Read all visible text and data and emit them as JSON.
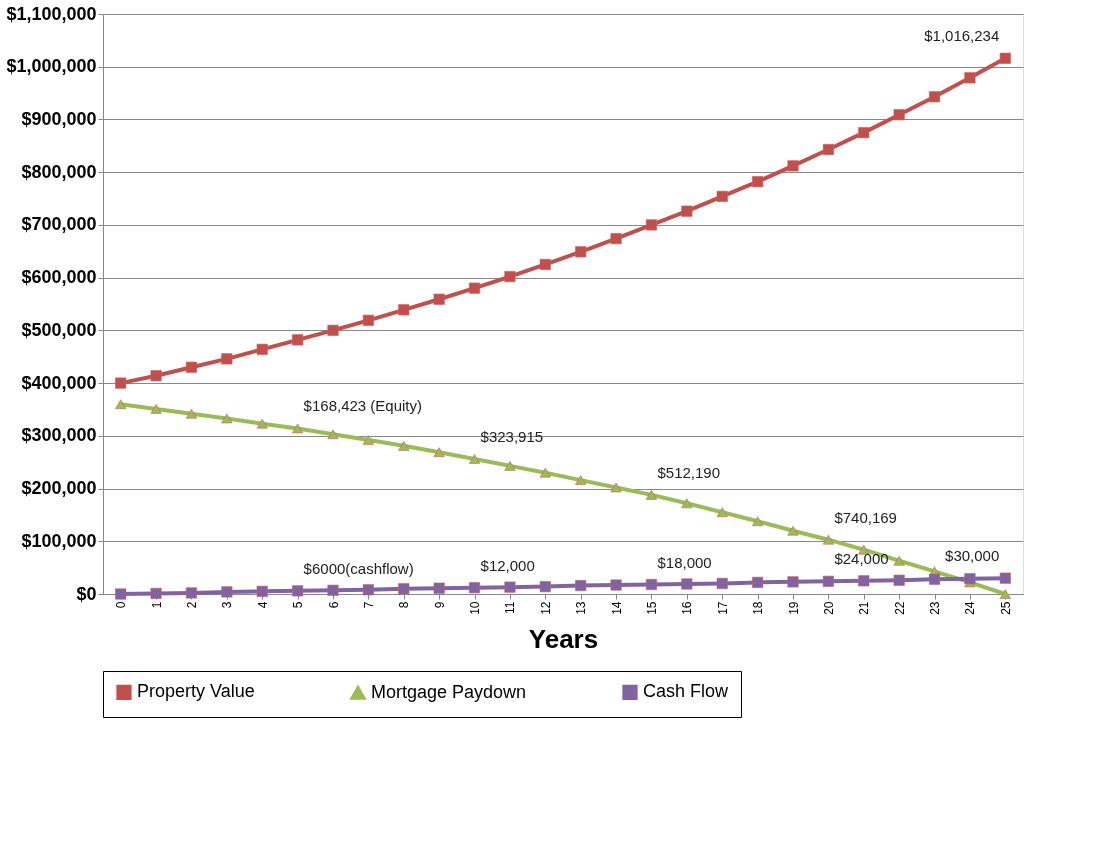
{
  "chart_data": {
    "type": "line",
    "xlabel": "Years",
    "categories": [
      "0",
      "1",
      "2",
      "3",
      "4",
      "5",
      "6",
      "7",
      "8",
      "9",
      "10",
      "11",
      "12",
      "13",
      "14",
      "15",
      "16",
      "17",
      "18",
      "19",
      "20",
      "21",
      "22",
      "23",
      "24",
      "25"
    ],
    "series": [
      {
        "name": "Property Value",
        "color": "#c0504d",
        "marker": "square",
        "values": [
          400000,
          414000,
          430000,
          446000,
          464000,
          482000,
          500000,
          519000,
          539000,
          559000,
          580000,
          602000,
          625000,
          649000,
          674000,
          700000,
          726000,
          754000,
          782000,
          812000,
          843000,
          875000,
          909000,
          943000,
          979000,
          1016000
        ]
      },
      {
        "name": "Mortgage Paydown",
        "color": "#9bbb59",
        "marker": "triangle",
        "values": [
          360000,
          351000,
          342000,
          333000,
          323000,
          314000,
          303000,
          292000,
          281000,
          269000,
          256000,
          243000,
          230000,
          216000,
          202000,
          188000,
          172000,
          155000,
          138000,
          120000,
          103000,
          84000,
          63000,
          43000,
          22000,
          0
        ]
      },
      {
        "name": "Cash Flow",
        "color": "#8064a2",
        "marker": "square",
        "values": [
          0,
          1000,
          2000,
          4000,
          5000,
          6000,
          7000,
          8000,
          10000,
          11000,
          12000,
          13000,
          14000,
          16000,
          17000,
          18000,
          19000,
          20000,
          22000,
          23000,
          24000,
          25000,
          26000,
          28000,
          29000,
          30000
        ]
      }
    ],
    "ylim": [
      0,
      1100000
    ],
    "yticks": [
      {
        "value": 0,
        "label": "$0"
      },
      {
        "value": 100000,
        "label": "$100,000"
      },
      {
        "value": 200000,
        "label": "$200,000"
      },
      {
        "value": 300000,
        "label": "$300,000"
      },
      {
        "value": 400000,
        "label": "$400,000"
      },
      {
        "value": 500000,
        "label": "$500,000"
      },
      {
        "value": 600000,
        "label": "$600,000"
      },
      {
        "value": 700000,
        "label": "$700,000"
      },
      {
        "value": 800000,
        "label": "$800,000"
      },
      {
        "value": 900000,
        "label": "$900,000"
      },
      {
        "value": 1000000,
        "label": "$1,000,000"
      },
      {
        "value": 1100000,
        "label": "$1,100,000"
      }
    ],
    "annotations": [
      {
        "text": "$168,423 (Equity)",
        "x": "5",
        "y": 314000
      },
      {
        "text": "$323,915",
        "x": "10",
        "y": 256000
      },
      {
        "text": "$512,190",
        "x": "15",
        "y": 188000
      },
      {
        "text": "$740,169",
        "x": "20",
        "y": 103000
      },
      {
        "text": "$1,016,234",
        "x": "25",
        "y": 1016000
      },
      {
        "text": "$6000(cashflow)",
        "x": "5",
        "y": 6000
      },
      {
        "text": "$12,000",
        "x": "10",
        "y": 12000
      },
      {
        "text": "$18,000",
        "x": "15",
        "y": 18000
      },
      {
        "text": "$24,000",
        "x": "20",
        "y": 24000
      },
      {
        "text": "$30,000",
        "x": "25",
        "y": 30000
      }
    ],
    "grid": "y",
    "legend": "bottom",
    "line_style": "solid"
  }
}
